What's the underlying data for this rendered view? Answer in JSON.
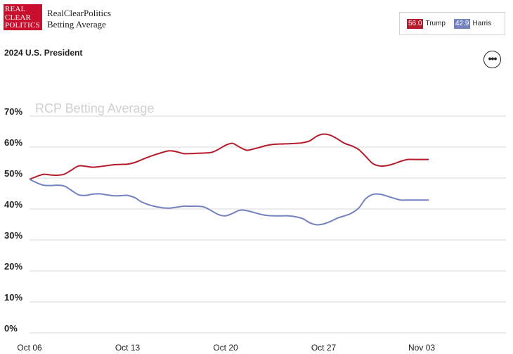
{
  "header": {
    "logo_lines": [
      "REAL",
      "CLEAR",
      "POLITICS"
    ],
    "brand_line1": "RealClearPolitics",
    "brand_line2": "Betting Average",
    "title": "2024 U.S. President",
    "menu_icon": "more-dots-icon"
  },
  "legend": {
    "items": [
      {
        "value": "56.0",
        "name": "Trump",
        "color": "#b51b2a"
      },
      {
        "value": "42.9",
        "name": "Harris",
        "color": "#7482c0"
      }
    ]
  },
  "chart_data": {
    "type": "line",
    "watermark": "RCP Betting Average",
    "y_ticks": [
      "0%",
      "10%",
      "20%",
      "30%",
      "40%",
      "50%",
      "60%",
      "70%"
    ],
    "x_ticks": [
      "Oct 06",
      "Oct 13",
      "Oct 20",
      "Oct 27",
      "Nov 03"
    ],
    "ylim": [
      0,
      70
    ],
    "grid": true,
    "series": [
      {
        "name": "Trump",
        "color": "#b51b2a",
        "x": [
          0,
          0.5,
          1,
          1.5,
          2,
          2.5,
          3,
          3.5,
          4,
          4.5,
          5,
          5.5,
          6,
          6.5,
          7,
          7.5,
          8,
          8.5,
          9,
          9.5,
          10,
          10.5,
          11,
          11.5,
          12,
          12.5,
          13,
          13.5,
          14,
          14.5,
          15,
          15.5,
          16,
          16.5,
          17,
          17.5,
          18,
          18.5,
          19,
          19.5,
          20,
          20.5,
          21,
          21.5,
          22,
          22.5,
          23,
          23.5,
          24,
          24.5,
          25,
          25.5,
          26,
          26.5,
          27,
          27.5,
          28,
          28.5
        ],
        "values": [
          49.6,
          50.5,
          51.2,
          51.0,
          50.9,
          51.3,
          52.6,
          53.9,
          53.8,
          53.5,
          53.7,
          54.0,
          54.3,
          54.4,
          54.5,
          55.0,
          55.9,
          56.8,
          57.6,
          58.3,
          58.8,
          58.5,
          57.9,
          57.9,
          58.0,
          58.1,
          58.3,
          59.3,
          60.6,
          61.2,
          60.0,
          59.0,
          59.4,
          60.0,
          60.6,
          60.9,
          61.0,
          61.1,
          61.2,
          61.4,
          62.0,
          63.5,
          64.2,
          63.8,
          62.6,
          61.2,
          60.4,
          59.2,
          57.0,
          54.7,
          53.9,
          54.0,
          54.6,
          55.4,
          56.0,
          56.0,
          56.0,
          56.0
        ]
      },
      {
        "name": "Harris",
        "color": "#7482c0",
        "x": [
          0,
          0.5,
          1,
          1.5,
          2,
          2.5,
          3,
          3.5,
          4,
          4.5,
          5,
          5.5,
          6,
          6.5,
          7,
          7.5,
          8,
          8.5,
          9,
          9.5,
          10,
          10.5,
          11,
          11.5,
          12,
          12.5,
          13,
          13.5,
          14,
          14.5,
          15,
          15.5,
          16,
          16.5,
          17,
          17.5,
          18,
          18.5,
          19,
          19.5,
          20,
          20.5,
          21,
          21.5,
          22,
          22.5,
          23,
          23.5,
          24,
          24.5,
          25,
          25.5,
          26,
          26.5,
          27,
          27.5,
          28,
          28.5
        ],
        "values": [
          49.6,
          48.5,
          47.7,
          47.6,
          47.7,
          47.4,
          46.0,
          44.6,
          44.4,
          44.8,
          44.9,
          44.6,
          44.3,
          44.3,
          44.4,
          43.7,
          42.3,
          41.4,
          40.8,
          40.4,
          40.3,
          40.6,
          40.9,
          40.9,
          40.9,
          40.6,
          39.4,
          38.2,
          37.8,
          38.6,
          39.6,
          39.5,
          38.9,
          38.3,
          37.9,
          37.8,
          37.8,
          37.8,
          37.5,
          36.9,
          35.6,
          34.9,
          35.2,
          36.0,
          37.1,
          37.8,
          38.7,
          40.3,
          43.3,
          44.7,
          44.8,
          44.2,
          43.5,
          42.9,
          42.9,
          42.9,
          42.9,
          42.9
        ]
      }
    ]
  }
}
